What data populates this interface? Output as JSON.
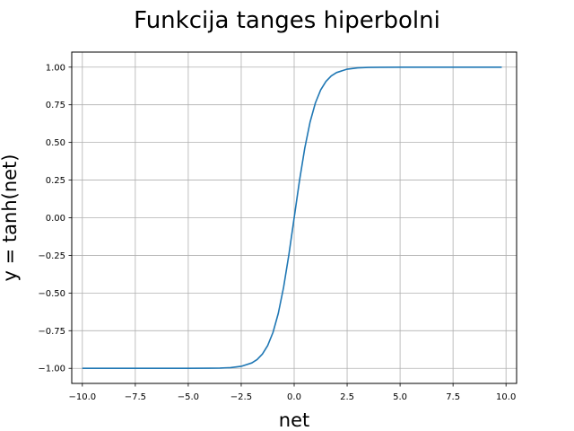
{
  "chart_data": {
    "type": "line",
    "title": "Funkcija tanges hiperbolni",
    "xlabel": "net",
    "ylabel": "y = tanh(net)",
    "xlim": [
      -10.5,
      10.5
    ],
    "ylim": [
      -1.1,
      1.1
    ],
    "x_ticks": [
      -10.0,
      -7.5,
      -5.0,
      -2.5,
      0.0,
      2.5,
      5.0,
      7.5,
      10.0
    ],
    "y_ticks": [
      -1.0,
      -0.75,
      -0.5,
      -0.25,
      0.0,
      0.25,
      0.5,
      0.75,
      1.0
    ],
    "x_tick_labels": [
      "−10.0",
      "−7.5",
      "−5.0",
      "−2.5",
      "0.0",
      "2.5",
      "5.0",
      "7.5",
      "10.0"
    ],
    "y_tick_labels": [
      "−1.00",
      "−0.75",
      "−0.50",
      "−0.25",
      "0.00",
      "0.25",
      "0.50",
      "0.75",
      "1.00"
    ],
    "grid": true,
    "series": [
      {
        "color": "#1f77b4",
        "x": [
          -10.0,
          -9.0,
          -8.0,
          -7.0,
          -6.0,
          -5.0,
          -4.0,
          -3.5,
          -3.0,
          -2.5,
          -2.0,
          -1.75,
          -1.5,
          -1.25,
          -1.0,
          -0.75,
          -0.5,
          -0.25,
          0.0,
          0.25,
          0.5,
          0.75,
          1.0,
          1.25,
          1.5,
          1.75,
          2.0,
          2.5,
          3.0,
          3.5,
          4.0,
          5.0,
          6.0,
          7.0,
          8.0,
          9.0,
          9.8
        ],
        "y": [
          -1.0,
          -1.0,
          -1.0,
          -1.0,
          -1.0,
          -0.9999,
          -0.9993,
          -0.9982,
          -0.9951,
          -0.9866,
          -0.964,
          -0.9414,
          -0.9051,
          -0.8483,
          -0.7616,
          -0.6351,
          -0.4621,
          -0.2449,
          0.0,
          0.2449,
          0.4621,
          0.6351,
          0.7616,
          0.8483,
          0.9051,
          0.9414,
          0.964,
          0.9866,
          0.9951,
          0.9982,
          0.9993,
          0.9999,
          1.0,
          1.0,
          1.0,
          1.0,
          1.0
        ]
      }
    ]
  }
}
